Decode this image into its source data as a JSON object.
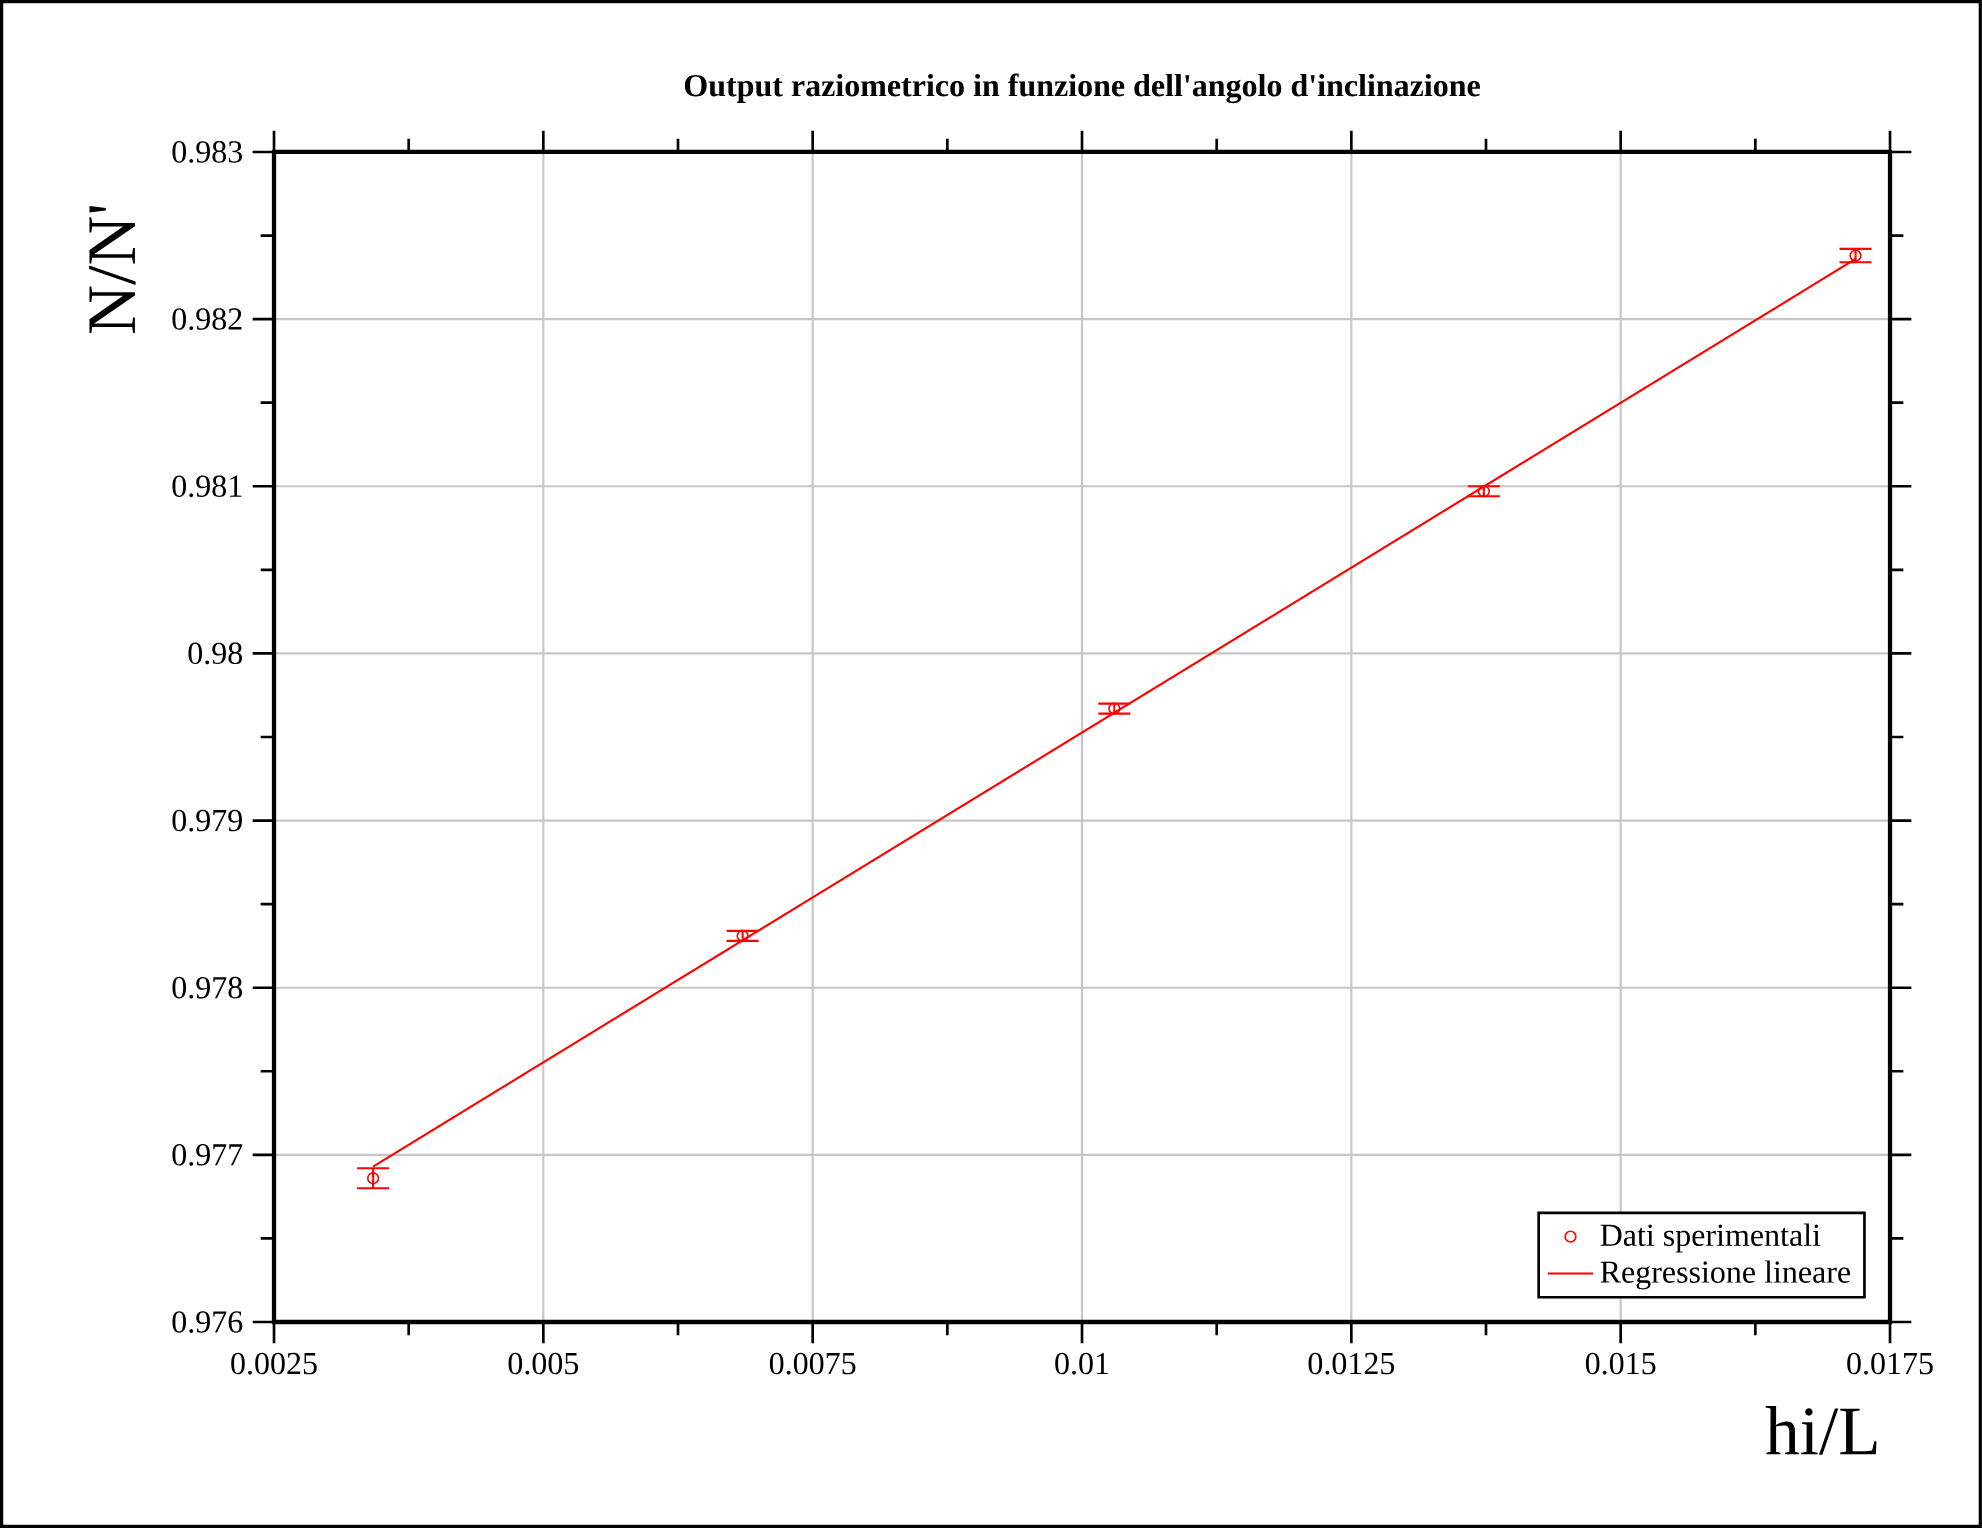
{
  "chart_data": {
    "type": "scatter",
    "title": "Output raziometrico in funzione dell'angolo d'inclinazione",
    "xlabel": "hi/L",
    "ylabel": "N/N'",
    "xlim": [
      0.0025,
      0.0175
    ],
    "xticks": [
      0.0025,
      0.005,
      0.0075,
      0.01,
      0.0125,
      0.015,
      0.0175
    ],
    "ylim": [
      0.976,
      0.983
    ],
    "yticks": [
      0.976,
      0.977,
      0.978,
      0.979,
      0.98,
      0.981,
      0.982,
      0.983
    ],
    "grid": true,
    "legend": "bottom right",
    "series": [
      {
        "name": "Dati sperimentali",
        "marker": "circle",
        "color": "#ff0000",
        "x": [
          0.00342,
          0.00685,
          0.0103,
          0.01373,
          0.01718
        ],
        "values": [
          0.97686,
          0.97831,
          0.97967,
          0.98097,
          0.98238
        ],
        "errors": [
          6e-05,
          3e-05,
          3e-05,
          3e-05,
          4e-05
        ]
      },
      {
        "name": "Regressione lineare",
        "type": "line",
        "marker": "none",
        "line_style": "solid",
        "color": "#ff0000",
        "x": [
          0.00342,
          0.01718
        ],
        "values": [
          0.97693,
          0.98236
        ]
      }
    ]
  }
}
